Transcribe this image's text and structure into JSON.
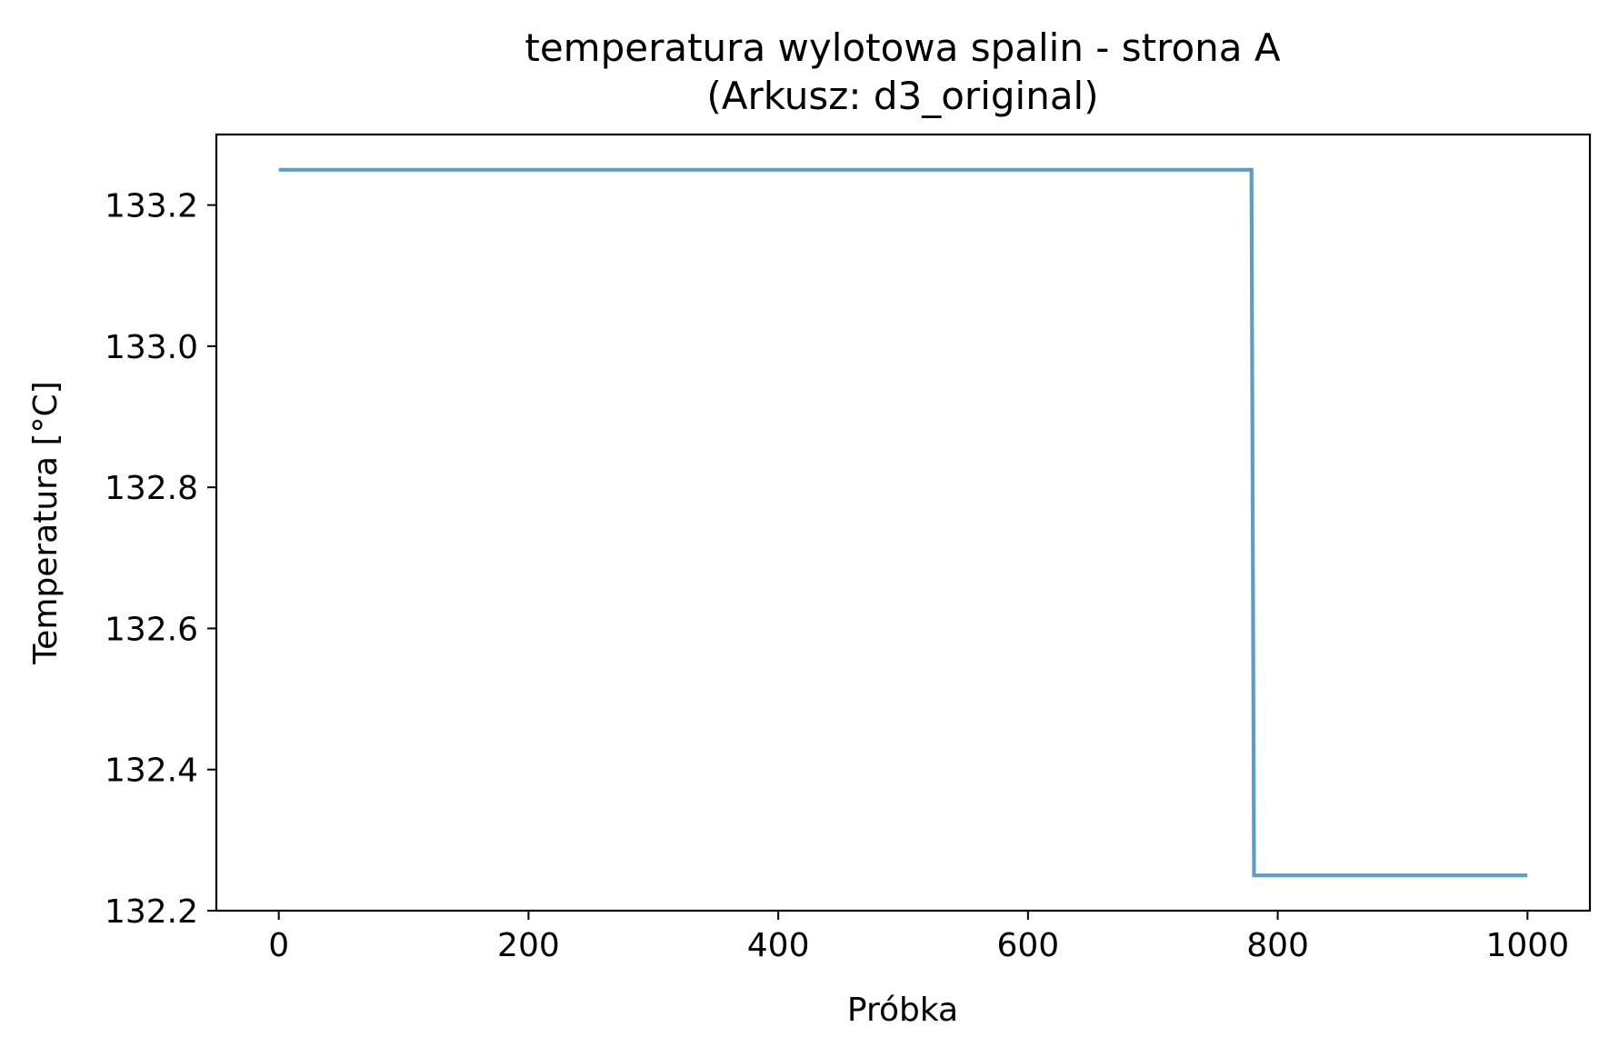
{
  "chart_data": {
    "type": "line",
    "title": "temperatura wylotowa spalin - strona A",
    "subtitle": "(Arkusz: d3_original)",
    "xlabel": "Próbka",
    "ylabel": "Temperatura [°C]",
    "xlim": [
      -50,
      1050
    ],
    "ylim": [
      132.2,
      133.3
    ],
    "xticks": [
      0,
      200,
      400,
      600,
      800,
      1000
    ],
    "xtick_labels": [
      "0",
      "200",
      "400",
      "600",
      "800",
      "1000"
    ],
    "yticks": [
      132.2,
      132.4,
      132.6,
      132.8,
      133.0,
      133.2
    ],
    "ytick_labels": [
      "132.2",
      "132.4",
      "132.6",
      "132.8",
      "133.0",
      "133.2"
    ],
    "grid": false,
    "series": [
      {
        "color": "#5f9dc6",
        "x": [
          0,
          779,
          781,
          1000
        ],
        "y": [
          133.25,
          133.25,
          132.25,
          132.25
        ]
      }
    ]
  }
}
